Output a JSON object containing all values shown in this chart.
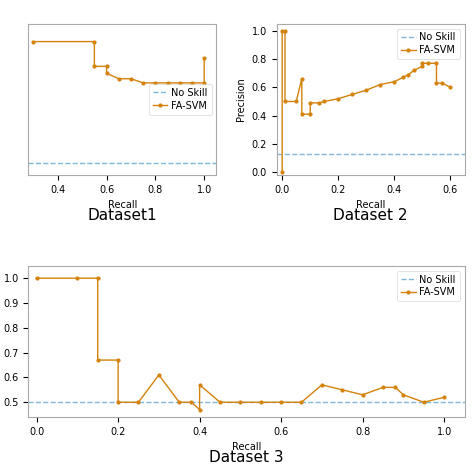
{
  "label_fontsize": 7,
  "tick_fontsize": 7,
  "legend_fontsize": 7,
  "fasvm_color": "#D4820A",
  "noskill_color": "#7DB8D4",
  "dataset_label_fontsize": 11,
  "ds1": {
    "no_skill": 0.07,
    "recall": [
      0.3,
      0.55,
      0.55,
      0.6,
      0.6,
      0.65,
      0.7,
      0.75,
      0.8,
      0.85,
      0.9,
      0.95,
      1.0,
      1.0
    ],
    "precision": [
      0.95,
      0.95,
      0.77,
      0.77,
      0.72,
      0.68,
      0.68,
      0.65,
      0.65,
      0.65,
      0.65,
      0.65,
      0.65,
      0.83
    ],
    "xlim": [
      0.28,
      1.05
    ],
    "ylim": [
      -0.02,
      1.08
    ],
    "xlabel": "Recall",
    "ylabel": "",
    "legend_loc": "center right",
    "show_yticks": false
  },
  "ds2": {
    "no_skill": 0.13,
    "recall": [
      0.0,
      0.0,
      0.01,
      0.01,
      0.05,
      0.07,
      0.07,
      0.1,
      0.1,
      0.13,
      0.15,
      0.2,
      0.25,
      0.3,
      0.35,
      0.4,
      0.43,
      0.45,
      0.47,
      0.5,
      0.5,
      0.52,
      0.55,
      0.55,
      0.57,
      0.6
    ],
    "precision": [
      0.0,
      1.0,
      1.0,
      0.5,
      0.5,
      0.66,
      0.41,
      0.41,
      0.49,
      0.49,
      0.5,
      0.52,
      0.55,
      0.58,
      0.62,
      0.64,
      0.67,
      0.69,
      0.72,
      0.75,
      0.77,
      0.77,
      0.77,
      0.63,
      0.63,
      0.6
    ],
    "xlim": [
      -0.02,
      0.65
    ],
    "ylim": [
      -0.02,
      1.05
    ],
    "xlabel": "Recall",
    "ylabel": "Precision",
    "legend_loc": "upper right",
    "show_yticks": true
  },
  "ds3": {
    "no_skill": 0.5,
    "recall": [
      0.0,
      0.1,
      0.15,
      0.15,
      0.2,
      0.2,
      0.25,
      0.3,
      0.35,
      0.38,
      0.4,
      0.4,
      0.45,
      0.5,
      0.55,
      0.6,
      0.65,
      0.7,
      0.75,
      0.8,
      0.85,
      0.88,
      0.9,
      0.95,
      1.0
    ],
    "precision": [
      1.0,
      1.0,
      1.0,
      0.67,
      0.67,
      0.5,
      0.5,
      0.61,
      0.5,
      0.5,
      0.47,
      0.57,
      0.5,
      0.5,
      0.5,
      0.5,
      0.5,
      0.57,
      0.55,
      0.53,
      0.56,
      0.56,
      0.53,
      0.5,
      0.52
    ],
    "xlim": [
      -0.02,
      1.05
    ],
    "ylim": [
      0.44,
      1.05
    ],
    "xlabel": "Recall",
    "ylabel": "Precision",
    "legend_loc": "upper right",
    "show_yticks": true
  }
}
